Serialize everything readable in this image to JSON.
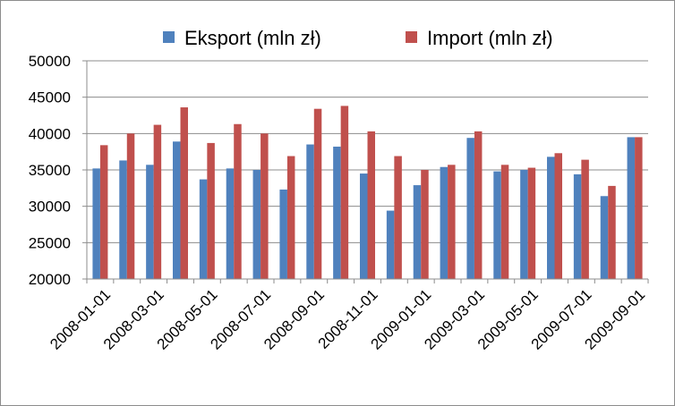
{
  "chart_data": {
    "type": "bar",
    "categories": [
      "2008-01-01",
      "2008-02-01",
      "2008-03-01",
      "2008-04-01",
      "2008-05-01",
      "2008-06-01",
      "2008-07-01",
      "2008-08-01",
      "2008-09-01",
      "2008-10-01",
      "2008-11-01",
      "2008-12-01",
      "2009-01-01",
      "2009-02-01",
      "2009-03-01",
      "2009-04-01",
      "2009-05-01",
      "2009-06-01",
      "2009-07-01",
      "2009-08-01",
      "2009-09-01"
    ],
    "x_tick_labels": [
      "2008-01-01",
      "2008-03-01",
      "2008-05-01",
      "2008-07-01",
      "2008-09-01",
      "2008-11-01",
      "2009-01-01",
      "2009-03-01",
      "2009-05-01",
      "2009-07-01",
      "2009-09-01"
    ],
    "series": [
      {
        "name": "Eksport (mln zł)",
        "color": "#4F81BD",
        "values": [
          35200,
          36300,
          35700,
          38900,
          33700,
          35200,
          35000,
          32300,
          38500,
          38200,
          34500,
          29400,
          32900,
          35400,
          39400,
          34800,
          35000,
          36800,
          34400,
          31400,
          39500
        ]
      },
      {
        "name": "Import (mln zł)",
        "color": "#C0504D",
        "values": [
          38400,
          40000,
          41200,
          43600,
          38700,
          41300,
          40000,
          36900,
          43400,
          43800,
          40300,
          36900,
          35000,
          35700,
          40300,
          35700,
          35300,
          37300,
          36400,
          32800,
          39500
        ]
      }
    ],
    "ylim": [
      20000,
      50000
    ],
    "yticks": [
      20000,
      25000,
      30000,
      35000,
      40000,
      45000,
      50000
    ],
    "grid": true,
    "legend_position": "top",
    "xlabel": "",
    "ylabel": "",
    "title": ""
  }
}
